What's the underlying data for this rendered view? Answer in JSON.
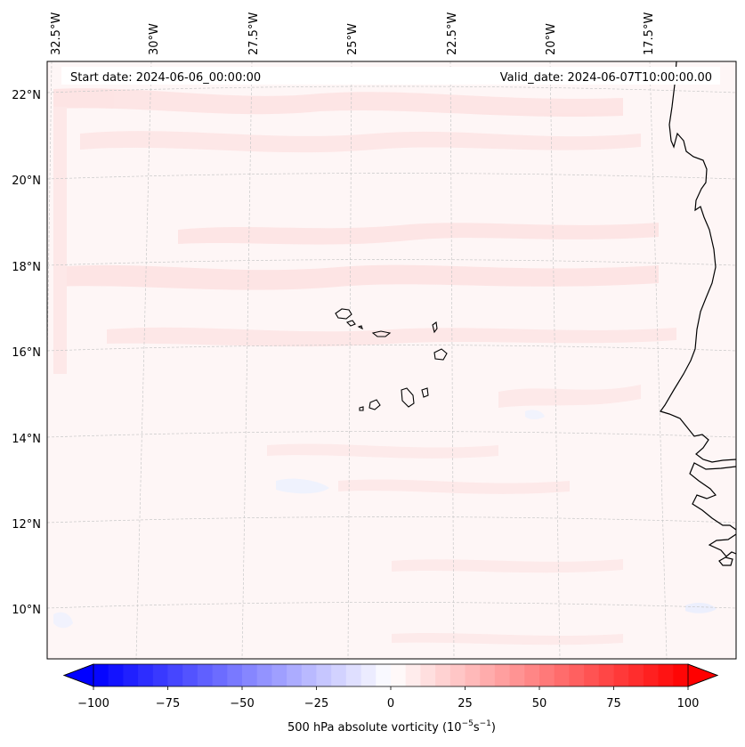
{
  "map": {
    "start_date_label": "Start date: 2024-06-06_00:00:00",
    "valid_date_label": "Valid_date: 2024-06-07T10:00:00.00",
    "longitude_labels": [
      "32.5°W",
      "30°W",
      "27.5°W",
      "25°W",
      "22.5°W",
      "20°W",
      "17.5°W"
    ],
    "latitude_labels": [
      "22°N",
      "20°N",
      "18°N",
      "16°N",
      "14°N",
      "12°N",
      "10°N"
    ],
    "field_background": "#fef6f6",
    "gridline_color": "#c8c8c8",
    "coastline_color": "#000000"
  },
  "colorbar": {
    "label_main": "500 hPa absolute vorticity (10",
    "label_exp1": "−5",
    "label_mid": "s",
    "label_exp2": "−1",
    "label_end": ")",
    "tick_labels": [
      "−100",
      "−75",
      "−50",
      "−25",
      "0",
      "25",
      "50",
      "75",
      "100"
    ],
    "min_color": "#0000ff",
    "mid_color": "#ffffff",
    "max_color": "#ff0000"
  }
}
